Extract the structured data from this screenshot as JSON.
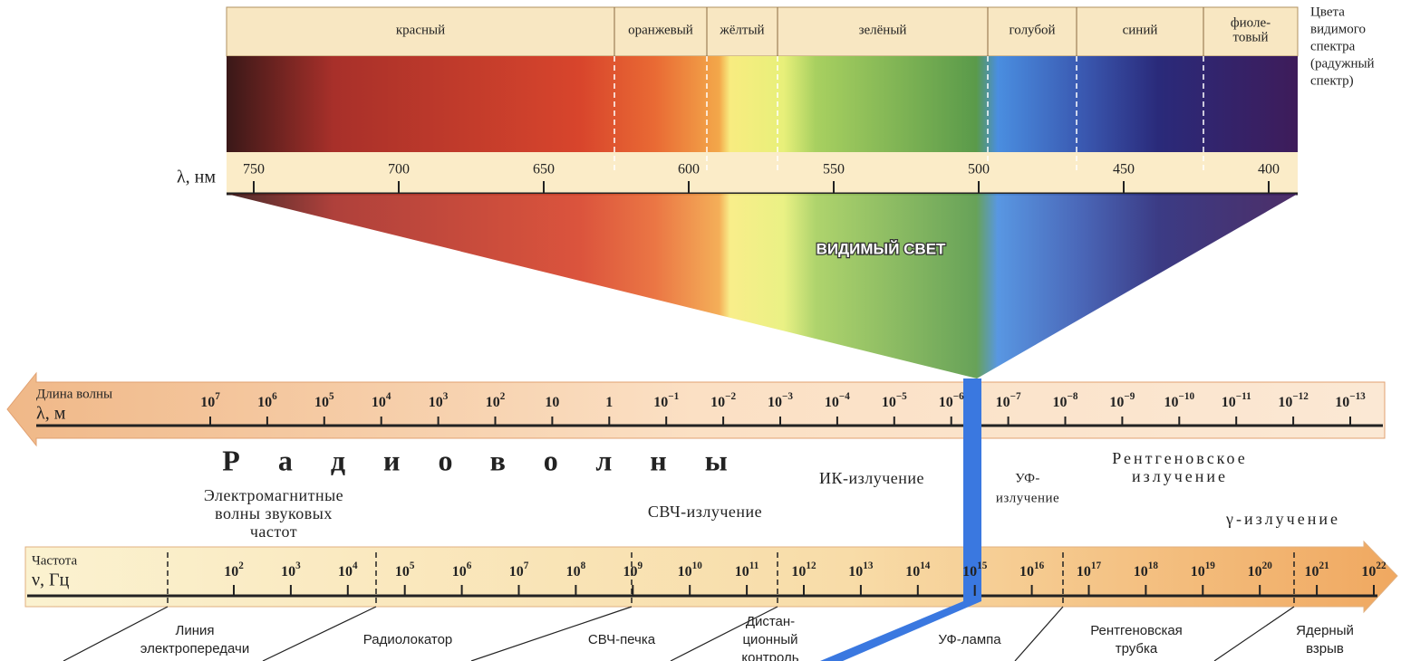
{
  "spectrum": {
    "colors": [
      [
        "красный"
      ],
      [
        "оранжевый"
      ],
      [
        "жёлтый"
      ],
      [
        "зелёный"
      ],
      [
        "голубой"
      ],
      [
        "синий"
      ],
      [
        "фиоле-",
        "товый"
      ]
    ],
    "side_label": [
      "Цвета",
      "видимого",
      "спектра",
      "(радужный",
      "спектр)"
    ],
    "unit_label": "λ, нм",
    "nm_ticks": [
      750,
      700,
      650,
      600,
      550,
      500,
      450,
      400
    ],
    "title": "ВИДИМЫЙ СВЕТ"
  },
  "wavelength_axis": {
    "label": "Длина волны",
    "symbol": "λ, м",
    "ticks": [
      {
        "base": "10",
        "exp": "7"
      },
      {
        "base": "10",
        "exp": "6"
      },
      {
        "base": "10",
        "exp": "5"
      },
      {
        "base": "10",
        "exp": "4"
      },
      {
        "base": "10",
        "exp": "3"
      },
      {
        "base": "10",
        "exp": "2"
      },
      {
        "base": "10"
      },
      {
        "base": "1"
      },
      {
        "base": "10",
        "exp": "−1"
      },
      {
        "base": "10",
        "exp": "−2"
      },
      {
        "base": "10",
        "exp": "−3"
      },
      {
        "base": "10",
        "exp": "−4"
      },
      {
        "base": "10",
        "exp": "−5"
      },
      {
        "base": "10",
        "exp": "−6"
      },
      {
        "base": "10",
        "exp": "−7"
      },
      {
        "base": "10",
        "exp": "−8"
      },
      {
        "base": "10",
        "exp": "−9"
      },
      {
        "base": "10",
        "exp": "−10"
      },
      {
        "base": "10",
        "exp": "−11"
      },
      {
        "base": "10",
        "exp": "−12"
      },
      {
        "base": "10",
        "exp": "−13"
      }
    ]
  },
  "regions": [
    [
      "Радиоволны"
    ],
    [
      "Электромагнитные",
      "волны звуковых",
      "частот"
    ],
    [
      "СВЧ-излучение"
    ],
    [
      "ИК-излучение"
    ],
    [
      "УФ-",
      "излучение"
    ],
    [
      "Рентгеновское",
      "излучение"
    ],
    [
      "γ-излучение"
    ]
  ],
  "frequency_axis": {
    "label": "Частота",
    "symbol": "ν, Гц",
    "ticks": [
      {
        "base": "10",
        "exp": "2"
      },
      {
        "base": "10",
        "exp": "3"
      },
      {
        "base": "10",
        "exp": "4"
      },
      {
        "base": "10",
        "exp": "5"
      },
      {
        "base": "10",
        "exp": "6"
      },
      {
        "base": "10",
        "exp": "7"
      },
      {
        "base": "10",
        "exp": "8"
      },
      {
        "base": "10",
        "exp": "9"
      },
      {
        "base": "10",
        "exp": "10"
      },
      {
        "base": "10",
        "exp": "11"
      },
      {
        "base": "10",
        "exp": "12"
      },
      {
        "base": "10",
        "exp": "13"
      },
      {
        "base": "10",
        "exp": "14"
      },
      {
        "base": "10",
        "exp": "15"
      },
      {
        "base": "10",
        "exp": "16"
      },
      {
        "base": "10",
        "exp": "17"
      },
      {
        "base": "10",
        "exp": "18"
      },
      {
        "base": "10",
        "exp": "19"
      },
      {
        "base": "10",
        "exp": "20"
      },
      {
        "base": "10",
        "exp": "21"
      },
      {
        "base": "10",
        "exp": "22"
      }
    ]
  },
  "sources": [
    [
      "Линия",
      "электропередачи"
    ],
    [
      "Радиолокатор"
    ],
    [
      "СВЧ-печка"
    ],
    [
      "Дистан-",
      "ционный",
      "контроль"
    ],
    [
      "УФ-лампа"
    ],
    [
      "Рентгеновская",
      "трубка"
    ],
    [
      "Ядерный",
      "взрыв"
    ]
  ]
}
